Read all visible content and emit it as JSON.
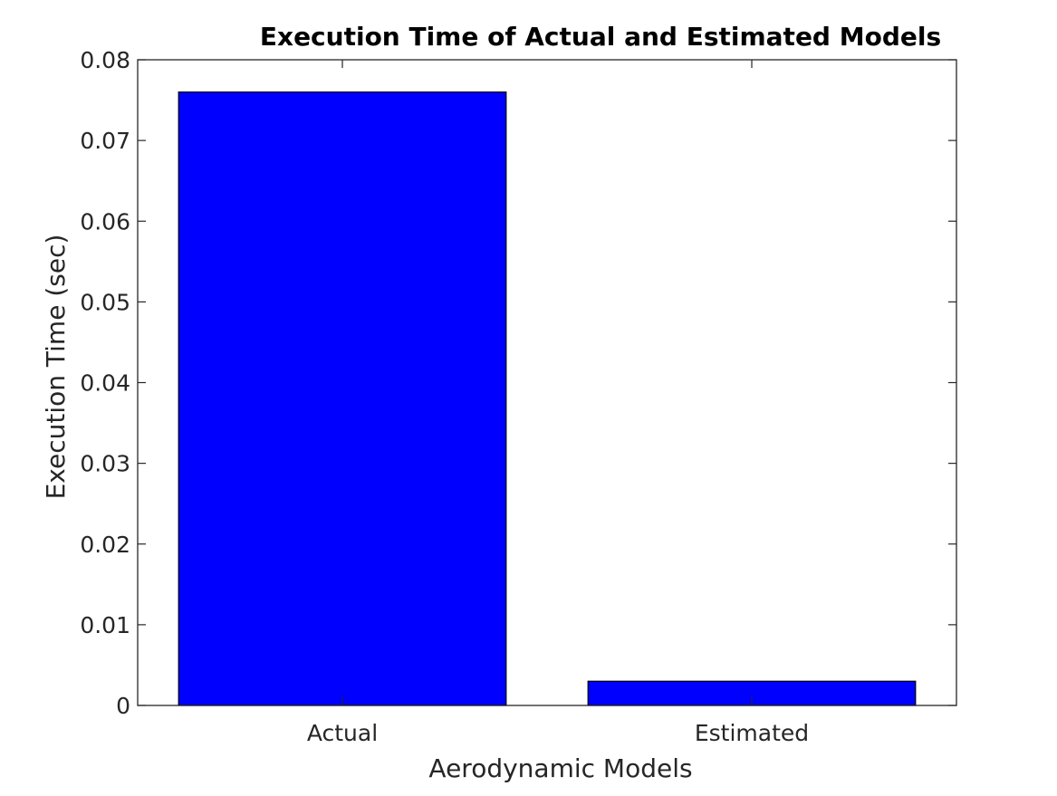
{
  "chart_data": {
    "type": "bar",
    "title": "Execution Time of Actual and Estimated Models",
    "xlabel": "Aerodynamic Models",
    "ylabel": "Execution Time (sec)",
    "categories": [
      "Actual",
      "Estimated"
    ],
    "values": [
      0.076,
      0.003
    ],
    "ylim": [
      0,
      0.08
    ],
    "yticks": [
      0,
      0.01,
      0.02,
      0.03,
      0.04,
      0.05,
      0.06,
      0.07,
      0.08
    ],
    "ytick_labels": [
      "0",
      "0.01",
      "0.02",
      "0.03",
      "0.04",
      "0.05",
      "0.06",
      "0.07",
      "0.08"
    ],
    "grid": false,
    "legend": "none",
    "colors": {
      "bar_fill": "#0000ff",
      "bar_edge": "#000000",
      "axis": "#262626"
    }
  }
}
